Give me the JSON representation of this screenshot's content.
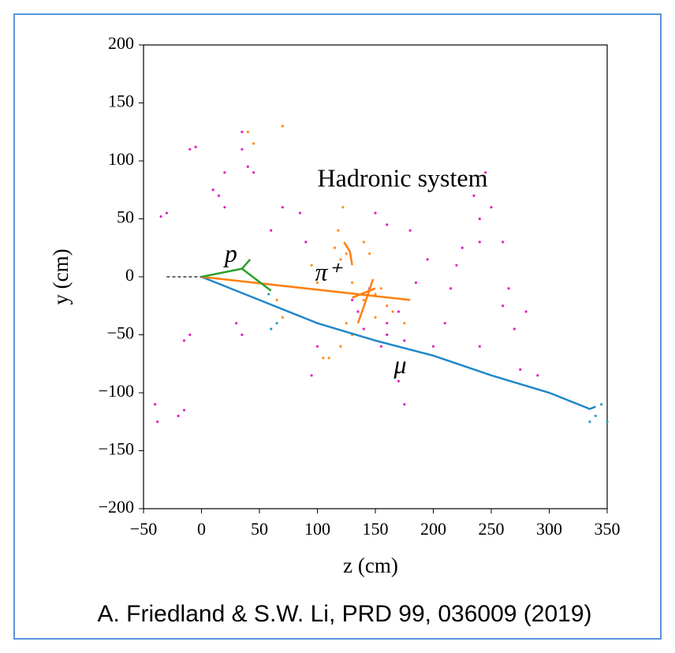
{
  "chart_data": {
    "type": "scatter",
    "xlabel": "z (cm)",
    "ylabel": "y (cm)",
    "xlim": [
      -50,
      350
    ],
    "ylim": [
      -200,
      200
    ],
    "xticks": [
      {
        "value": -50,
        "label": "−50"
      },
      0,
      50,
      100,
      150,
      200,
      250,
      300,
      350
    ],
    "yticks": [
      {
        "value": -200,
        "label": "−200"
      },
      {
        "value": -150,
        "label": "−150"
      },
      {
        "value": -100,
        "label": "−100"
      },
      {
        "value": -50,
        "label": "−50"
      },
      0,
      50,
      100,
      150,
      200
    ],
    "annotations": [
      "Hadronic system",
      "p",
      "π⁺",
      "μ"
    ],
    "series": [
      {
        "type": "line",
        "dashed": true,
        "color": "#333333",
        "x": [
          -30,
          0
        ],
        "values": [
          0,
          0
        ]
      },
      {
        "type": "line",
        "color": "#1f88c8",
        "x": [
          0,
          50,
          100,
          150,
          200,
          250,
          300,
          335,
          340
        ],
        "values": [
          0,
          -20,
          -40,
          -55,
          -68,
          -85,
          -100,
          -114,
          -112
        ]
      },
      {
        "type": "line",
        "color": "#ff7f0e",
        "x": [
          0,
          180
        ],
        "values": [
          0,
          -20
        ]
      },
      {
        "type": "line",
        "color": "#ff7f0e",
        "x": [
          123,
          128,
          130
        ],
        "values": [
          30,
          22,
          10
        ]
      },
      {
        "type": "line",
        "color": "#ff7f0e",
        "x": [
          148,
          142,
          135
        ],
        "values": [
          -2,
          -20,
          -40
        ]
      },
      {
        "type": "line",
        "color": "#ff7f0e",
        "x": [
          130,
          150
        ],
        "values": [
          -18,
          -10
        ]
      },
      {
        "type": "line",
        "color": "#2ca02c",
        "x": [
          0,
          35,
          42
        ],
        "values": [
          0,
          7,
          15
        ]
      },
      {
        "type": "line",
        "color": "#2ca02c",
        "x": [
          35,
          60
        ],
        "values": [
          7,
          -12
        ]
      },
      {
        "type": "scatter",
        "color": "#e020c0",
        "x": [
          -40,
          -38,
          -20,
          -15,
          -30,
          -35,
          -10,
          -5,
          10,
          15,
          20,
          -15,
          -10,
          30,
          35,
          20,
          35,
          35,
          40,
          45,
          60,
          70,
          85,
          90,
          100,
          95,
          130,
          135,
          140,
          155,
          160,
          170,
          170,
          175,
          175,
          200,
          210,
          215,
          220,
          225,
          240,
          240,
          235,
          245,
          250,
          260,
          265,
          270,
          280,
          275,
          290,
          240,
          260,
          180,
          200,
          195,
          185,
          150,
          160,
          145,
          160
        ],
        "values": [
          -110,
          -125,
          -120,
          -115,
          55,
          52,
          110,
          112,
          75,
          70,
          60,
          -55,
          -50,
          -40,
          -50,
          90,
          110,
          125,
          95,
          90,
          40,
          60,
          55,
          30,
          -60,
          -85,
          -20,
          -30,
          -45,
          -60,
          -40,
          -30,
          -90,
          -55,
          -110,
          -60,
          -40,
          -10,
          10,
          25,
          30,
          50,
          70,
          90,
          60,
          30,
          -10,
          -45,
          -30,
          -80,
          -85,
          -60,
          -25,
          40,
          80,
          15,
          -5,
          55,
          45,
          -10,
          -50
        ]
      },
      {
        "type": "scatter",
        "color": "#ff8c1a",
        "x": [
          115,
          120,
          125,
          118,
          122,
          125,
          130,
          140,
          150,
          155,
          160,
          165,
          150,
          130,
          120,
          110,
          105,
          100,
          95,
          140,
          145,
          40,
          45,
          70,
          175,
          65,
          70
        ],
        "values": [
          25,
          15,
          20,
          40,
          60,
          -40,
          -5,
          -20,
          -15,
          -10,
          -25,
          -30,
          -35,
          -50,
          -60,
          -70,
          -70,
          -5,
          10,
          30,
          20,
          125,
          115,
          130,
          -40,
          -20,
          -35
        ]
      },
      {
        "type": "scatter",
        "color": "#20a0c0",
        "x": [
          60,
          65,
          58,
          340,
          345,
          350,
          335
        ],
        "values": [
          -45,
          -40,
          -15,
          -120,
          -110,
          -125,
          -125
        ]
      }
    ]
  },
  "caption": "A. Friedland & S.W. Li, PRD 99, 036009 (2019)"
}
